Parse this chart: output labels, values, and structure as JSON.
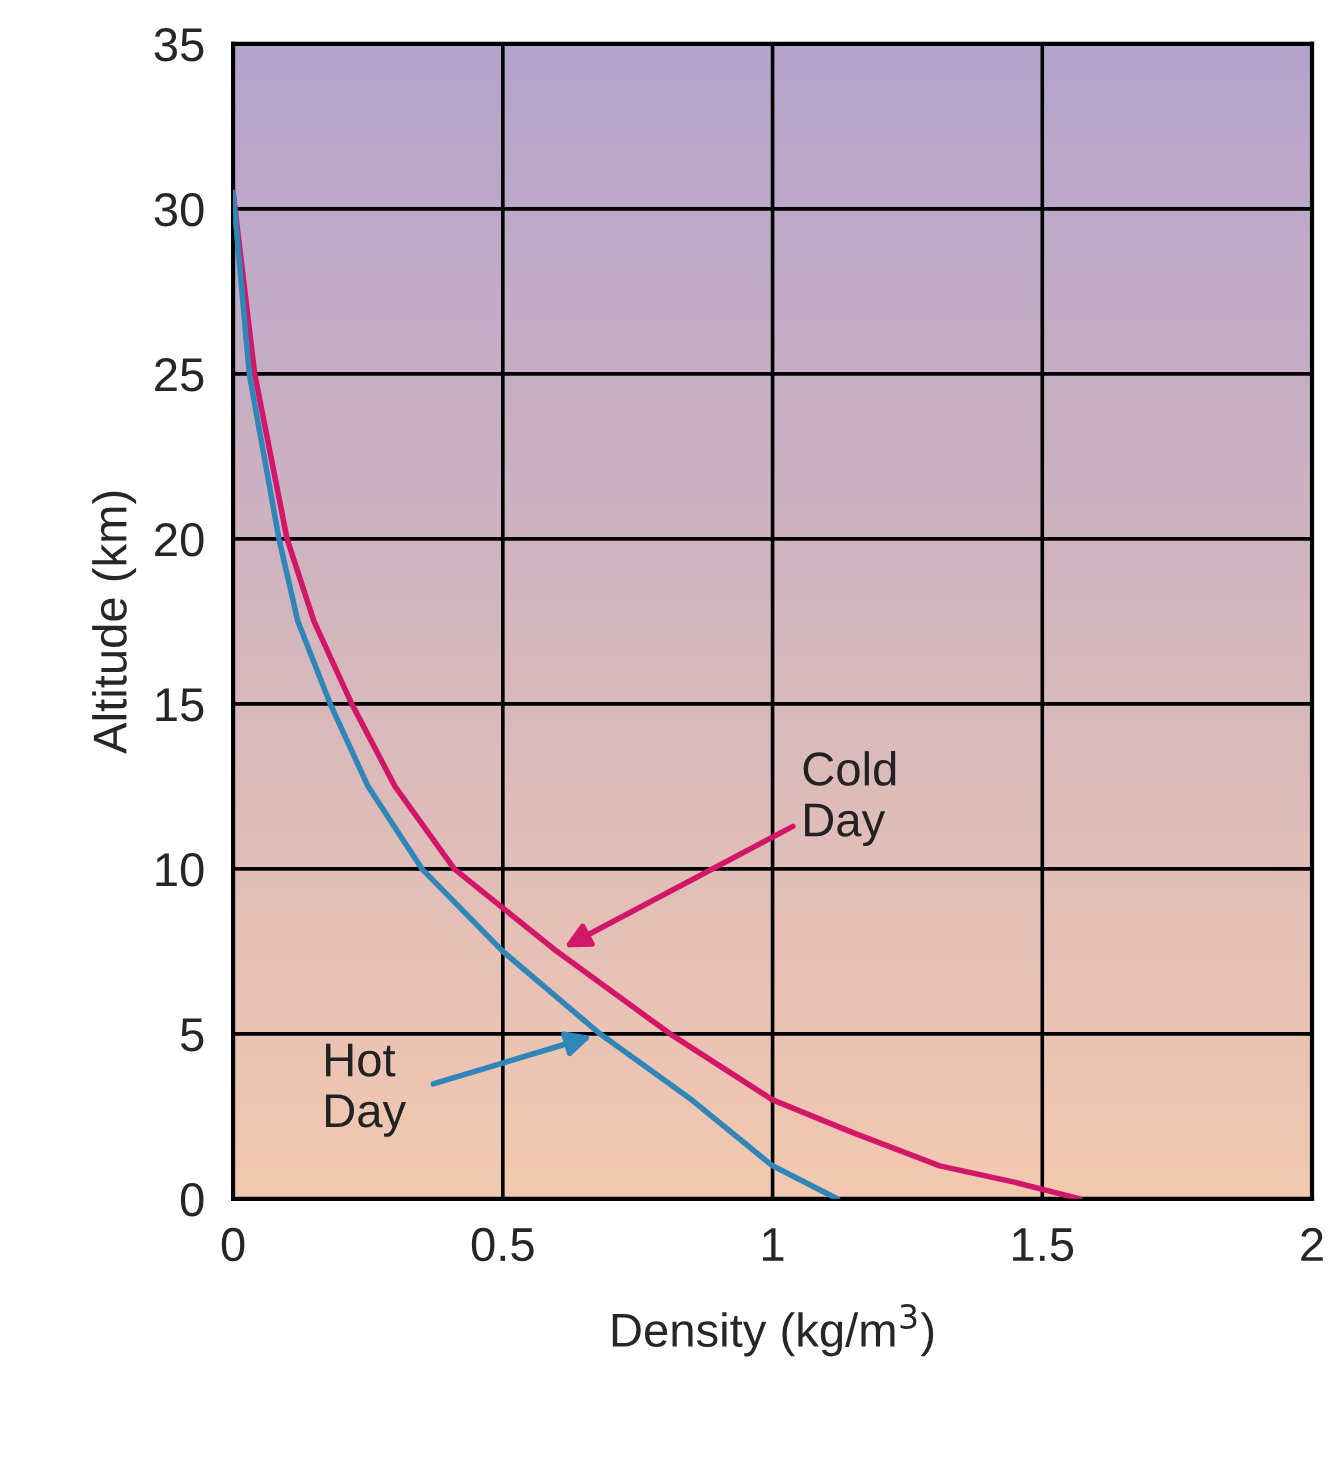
{
  "chart_data": {
    "type": "line",
    "xlabel": "Density (kg/m$^{3}$)",
    "ylabel": "Altitude (km)",
    "series": [
      {
        "name": "Cold Day",
        "color": "#d2166a",
        "x": [
          1.57,
          1.45,
          1.31,
          1.15,
          1.0,
          0.81,
          0.6,
          0.41,
          0.3,
          0.22,
          0.15,
          0.1,
          0.04,
          0.0
        ],
        "values": [
          0,
          0.5,
          1,
          2,
          3,
          5,
          7.5,
          10,
          12.5,
          15,
          17.5,
          20,
          25,
          30.5
        ]
      },
      {
        "name": "Hot Day",
        "color": "#2f86b8",
        "x": [
          1.12,
          1.0,
          0.85,
          0.68,
          0.5,
          0.35,
          0.25,
          0.18,
          0.12,
          0.085,
          0.03,
          0.0
        ],
        "values": [
          0,
          1,
          3,
          5,
          7.5,
          10,
          12.5,
          15,
          17.5,
          20,
          25,
          30.5
        ]
      }
    ],
    "xlim": [
      0,
      2
    ],
    "ylim": [
      0,
      35
    ],
    "xticks": [
      0,
      0.5,
      1,
      1.5,
      2
    ],
    "yticks": [
      0,
      5,
      10,
      15,
      20,
      25,
      30,
      35
    ],
    "grid": true
  }
}
